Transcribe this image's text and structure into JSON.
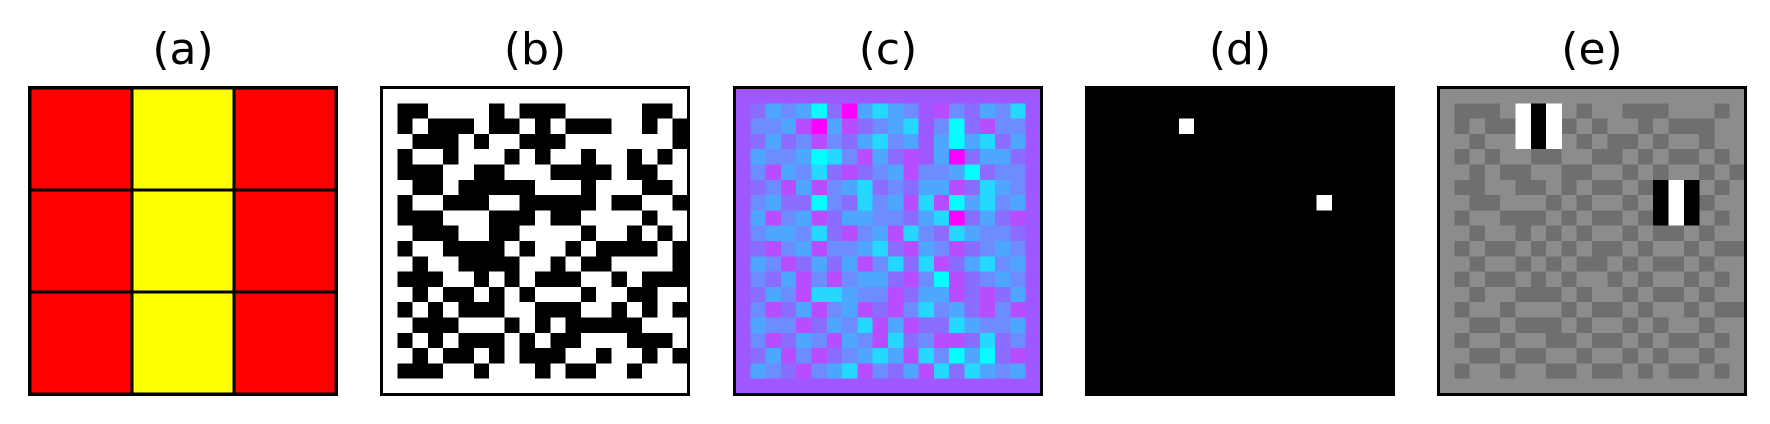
{
  "panels": [
    {
      "id": "a",
      "label": "(a)"
    },
    {
      "id": "b",
      "label": "(b)"
    },
    {
      "id": "c",
      "label": "(c)"
    },
    {
      "id": "d",
      "label": "(d)"
    },
    {
      "id": "e",
      "label": "(e)"
    }
  ],
  "panel_a": {
    "grid_size": 3,
    "colors": {
      "red": "#ff0000",
      "yellow": "#ffff00",
      "line": "#000000"
    },
    "cells": [
      [
        "red",
        "yellow",
        "red"
      ],
      [
        "red",
        "yellow",
        "red"
      ],
      [
        "red",
        "yellow",
        "red"
      ]
    ]
  },
  "panel_b": {
    "grid_size": 20,
    "colors": {
      "on": "#ffffff",
      "off": "#000000"
    },
    "cells": [
      "11111111111111111111",
      "10011110100011111001",
      "10100010010100011010",
      "11000101100011111110",
      "10110111010110110101",
      "10001100111000010011",
      "11001000001110111001",
      "10110001100000100110",
      "10001110001001111011",
      "11000110011110110101",
      "10110000101101000010",
      "11011000011010011110",
      "10001101010001101000",
      "11010010101110110011",
      "10101000110001101010",
      "11000111010100000111",
      "10101000101001110001",
      "11010010100011011010",
      "10001101110100110111",
      "11111111111111111111"
    ]
  },
  "panel_c": {
    "grid_size": 20,
    "colors": {
      "border": "#9f58ff",
      "palette": [
        "#9f58ff",
        "#8a6cff",
        "#6d8cff",
        "#4fa6ff",
        "#25d8ff",
        "#00ffff",
        "#b84cff",
        "#ff00ff"
      ]
    },
    "cells": [
      "00000000000000000000",
      "01323517343206213240",
      "02236736123402516220",
      "01312621342303534130",
      "03223542631603713310",
      "02632416123622351220",
      "01263623412133614320",
      "02311521423646534230",
      "03623613322134713160",
      "02332416236421432210",
      "01623622341632612320",
      "03261313624146134230",
      "02136262331625612320",
      "01326443226133616130",
      "02613623616242316260",
      "03226132463611432230",
      "02613263264126614120",
      "01362612343642535160",
      "03216234621364143230",
      "00000000000000000000"
    ]
  },
  "panel_d": {
    "grid_size": 20,
    "colors": {
      "background": "#000000",
      "pixel": "#ffffff"
    },
    "pixels": [
      [
        6,
        2
      ],
      [
        15,
        7
      ]
    ]
  },
  "panel_e": {
    "grid_size": 20,
    "colors": {
      "light": "#8c8c8c",
      "dark": "#6f6f6f",
      "black": "#000000",
      "white": "#ffffff"
    },
    "cells": [
      "11111111111111111111",
      "10001000101100011101",
      "10100110010110100011",
      "11011001101001011011",
      "10101100110010100101",
      "11010011001101011010",
      "10011001010010101101",
      "11001110101101010011",
      "10110001010010110101",
      "11011010101101001011",
      "10100101010010110100",
      "11011010100101001011",
      "10100101011010110101",
      "11011000101101001011",
      "10110111010010110100",
      "11001000101101011011",
      "10110110010010100101",
      "11001001101101011011",
      "10110110010010100101",
      "11111111111111111111"
    ],
    "stripe_blocks": [
      {
        "col": 5,
        "row": 1,
        "pattern": [
          "white",
          "black",
          "white"
        ]
      },
      {
        "col": 14,
        "row": 6,
        "pattern": [
          "black",
          "white",
          "black"
        ]
      }
    ]
  }
}
